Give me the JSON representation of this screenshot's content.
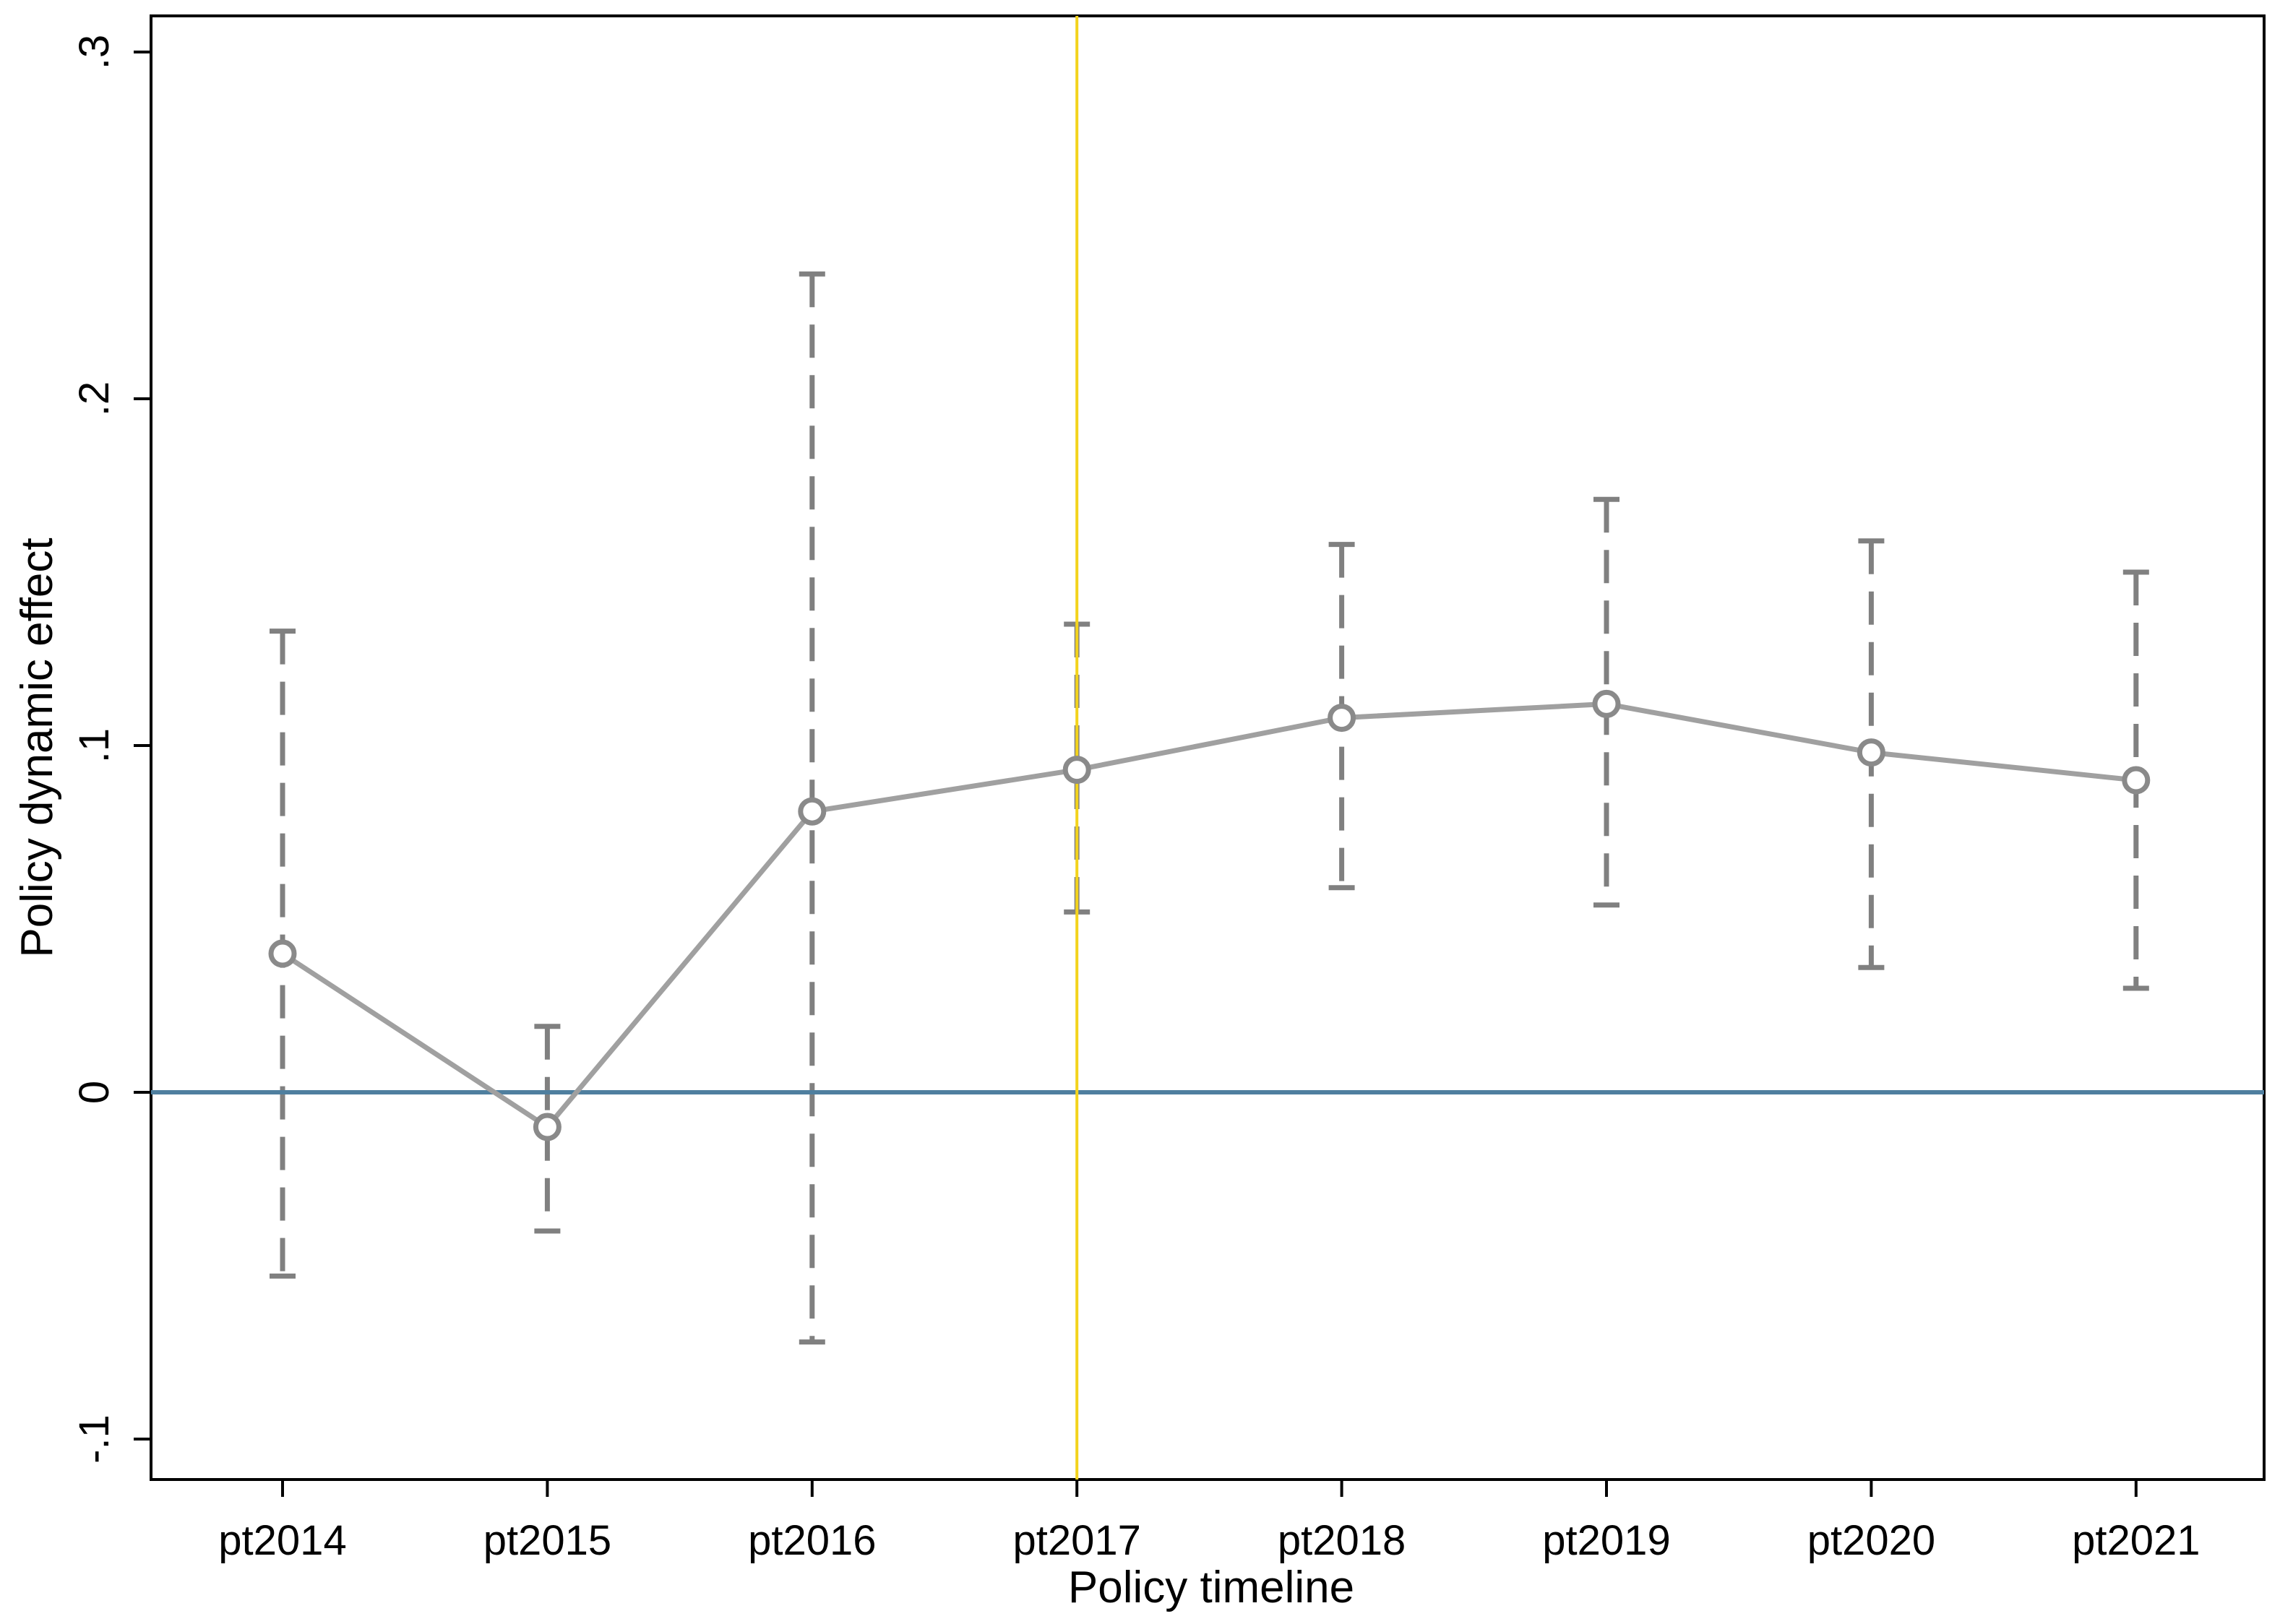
{
  "chart_data": {
    "type": "line",
    "title": "",
    "xlabel": "Policy timeline",
    "ylabel": "Policy dynamic effect",
    "categories": [
      "pt2014",
      "pt2015",
      "pt2016",
      "pt2017",
      "pt2018",
      "pt2019",
      "pt2020",
      "pt2021"
    ],
    "ylim": [
      -0.11,
      0.31
    ],
    "yticks": [
      -0.1,
      0,
      0.1,
      0.2,
      0.3
    ],
    "ytick_labels": [
      "-.1",
      "0",
      ".1",
      ".2",
      ".3"
    ],
    "series": [
      {
        "values": [
          0.04,
          -0.01,
          0.081,
          0.093,
          0.108,
          0.112,
          0.098,
          0.09
        ],
        "ci_lower": [
          -0.053,
          -0.04,
          -0.072,
          0.052,
          0.059,
          0.054,
          0.036,
          0.03
        ],
        "ci_upper": [
          0.133,
          0.019,
          0.236,
          0.135,
          0.158,
          0.171,
          0.159,
          0.15
        ],
        "color": "#a0a0a0",
        "ci_color": "#808080"
      }
    ],
    "reference_lines": {
      "horizontal": {
        "value": 0,
        "color": "#4f7f9f"
      },
      "vertical": {
        "category": "pt2017",
        "color": "#f3d31c"
      }
    },
    "grid": false,
    "legend": "none"
  }
}
